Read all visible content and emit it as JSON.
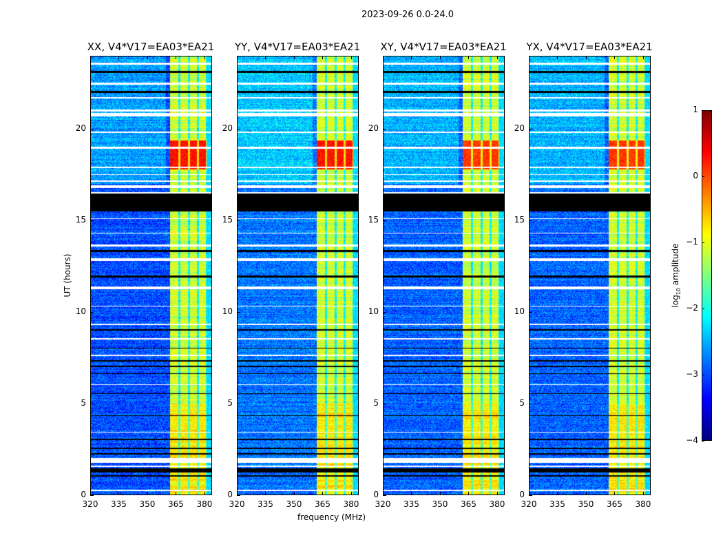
{
  "chart_data": {
    "type": "heatmap",
    "title": "2023-09-26 0.0-24.0",
    "xlabel": "frequency (MHz)",
    "ylabel": "UT (hours)",
    "xlim": [
      320,
      384
    ],
    "ylim": [
      0,
      24
    ],
    "xticks": [
      "320",
      "335",
      "350",
      "365",
      "380"
    ],
    "xtick_values": [
      320,
      335,
      350,
      365,
      380
    ],
    "yticks": [
      "0",
      "5",
      "10",
      "15",
      "20"
    ],
    "ytick_values": [
      0,
      5,
      10,
      15,
      20
    ],
    "panels": [
      {
        "title": "XX, V4*V17=EA03*EA21",
        "background_level": -3.0
      },
      {
        "title": "YY, V4*V17=EA03*EA21",
        "background_level": -2.8
      },
      {
        "title": "XY, V4*V17=EA03*EA21",
        "background_level": -2.9
      },
      {
        "title": "YX, V4*V17=EA03*EA21",
        "background_level": -2.9
      }
    ],
    "band_mhz": [
      362,
      381.5
    ],
    "band_level": -1.1,
    "burst_hours": [
      17.8,
      19.4
    ],
    "burst_level": 0.3,
    "dark_channels_mhz": [
      367,
      372,
      377,
      381.5
    ],
    "flagged_white_hours": [
      [
        23.55,
        23.65
      ],
      [
        22.45,
        22.55
      ],
      [
        21.7,
        21.76
      ],
      [
        21.0,
        21.08
      ],
      [
        20.7,
        20.9
      ],
      [
        19.8,
        19.9
      ],
      [
        18.95,
        19.05
      ],
      [
        17.9,
        17.96
      ],
      [
        17.5,
        17.55
      ],
      [
        17.15,
        17.2
      ],
      [
        16.8,
        16.95
      ],
      [
        16.5,
        16.55
      ],
      [
        15.1,
        15.15
      ],
      [
        14.3,
        14.35
      ],
      [
        13.6,
        13.7
      ],
      [
        12.8,
        12.95
      ],
      [
        11.25,
        11.4
      ],
      [
        10.3,
        10.35
      ],
      [
        9.3,
        9.35
      ],
      [
        8.5,
        8.55
      ],
      [
        7.6,
        7.65
      ],
      [
        6.0,
        6.05
      ],
      [
        3.4,
        3.45
      ],
      [
        1.75,
        2.0
      ],
      [
        1.5,
        1.6
      ],
      [
        0.2,
        0.25
      ]
    ],
    "flagged_black_hours": [
      [
        15.5,
        16.5
      ],
      [
        23.1,
        23.2
      ],
      [
        22.0,
        22.1
      ],
      [
        13.3,
        13.4
      ],
      [
        11.9,
        12.0
      ],
      [
        9.0,
        9.05
      ],
      [
        8.0,
        8.05
      ],
      [
        7.3,
        7.35
      ],
      [
        7.0,
        7.05
      ],
      [
        6.6,
        6.65
      ],
      [
        5.5,
        5.55
      ],
      [
        4.3,
        4.35
      ],
      [
        3.0,
        3.05
      ],
      [
        2.5,
        2.55
      ],
      [
        2.2,
        2.25
      ],
      [
        1.2,
        1.45
      ],
      [
        1.0,
        1.05
      ]
    ],
    "colorbar": {
      "label": "log10 amplitude",
      "label_main": "log",
      "label_sub": "10",
      "label_rest": " amplitude",
      "range": [
        -4,
        1
      ],
      "ticks": [
        "1",
        "0",
        "−1",
        "−2",
        "−3",
        "−4"
      ],
      "tick_values": [
        1,
        0,
        -1,
        -2,
        -3,
        -4
      ],
      "colormap": "jet"
    }
  }
}
